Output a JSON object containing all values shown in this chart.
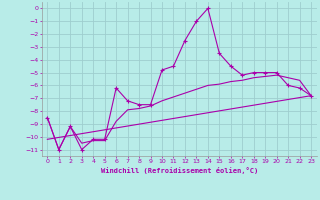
{
  "xlabel": "Windchill (Refroidissement éolien,°C)",
  "background_color": "#b8ece8",
  "grid_color": "#9ecece",
  "line_color": "#aa00aa",
  "xlim": [
    -0.5,
    23.5
  ],
  "ylim": [
    -11.5,
    0.5
  ],
  "yticks": [
    0,
    -1,
    -2,
    -3,
    -4,
    -5,
    -6,
    -7,
    -8,
    -9,
    -10,
    -11
  ],
  "xticks": [
    0,
    1,
    2,
    3,
    4,
    5,
    6,
    7,
    8,
    9,
    10,
    11,
    12,
    13,
    14,
    15,
    16,
    17,
    18,
    19,
    20,
    21,
    22,
    23
  ],
  "series1_x": [
    0,
    1,
    2,
    3,
    4,
    5,
    6,
    7,
    8,
    9,
    10,
    11,
    12,
    13,
    14,
    15,
    16,
    17,
    18,
    19,
    20,
    21,
    22,
    23
  ],
  "series1_y": [
    -8.5,
    -11.0,
    -9.2,
    -11.0,
    -10.2,
    -10.2,
    -6.2,
    -7.2,
    -7.5,
    -7.5,
    -4.8,
    -4.5,
    -2.5,
    -1.0,
    0.0,
    -3.5,
    -4.5,
    -5.2,
    -5.0,
    -5.0,
    -5.0,
    -6.0,
    -6.2,
    -6.8
  ],
  "series2_x": [
    0,
    1,
    2,
    3,
    4,
    5,
    6,
    7,
    8,
    9,
    10,
    11,
    12,
    13,
    14,
    15,
    16,
    17,
    18,
    19,
    20,
    21,
    22,
    23
  ],
  "series2_y": [
    -8.5,
    -11.0,
    -9.2,
    -10.5,
    -10.3,
    -10.3,
    -8.8,
    -7.9,
    -7.8,
    -7.6,
    -7.2,
    -6.9,
    -6.6,
    -6.3,
    -6.0,
    -5.9,
    -5.7,
    -5.6,
    -5.4,
    -5.3,
    -5.2,
    -5.4,
    -5.6,
    -6.8
  ],
  "series3_x": [
    0,
    23
  ],
  "series3_y": [
    -10.2,
    -6.8
  ]
}
